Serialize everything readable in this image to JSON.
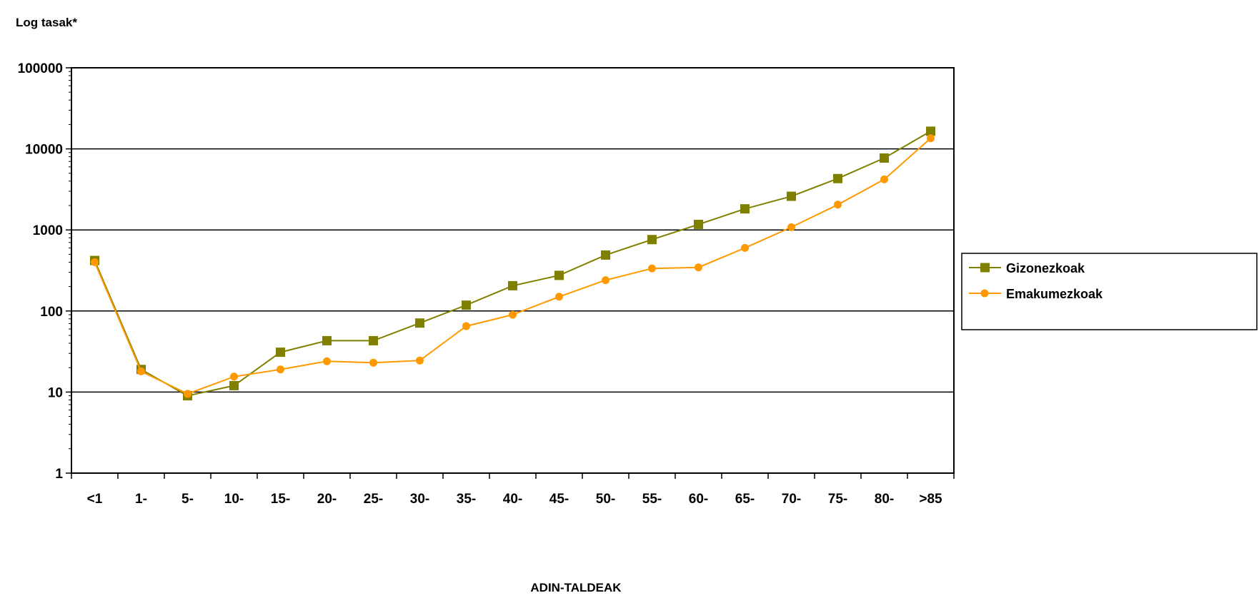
{
  "chart_data": {
    "type": "line",
    "ylabel": "Log tasak*",
    "xlabel": "ADIN-TALDEAK",
    "yscale": "log",
    "ylim": [
      1,
      100000
    ],
    "yticks": [
      "1",
      "10",
      "100",
      "1000",
      "10000",
      "100000"
    ],
    "grid": "horizontal major gridlines",
    "legend_position": "right",
    "categories": [
      "<1",
      "1-",
      "5-",
      "10-",
      "15-",
      "20-",
      "25-",
      "30-",
      "35-",
      "40-",
      "45-",
      "50-",
      "55-",
      "60-",
      "65-",
      "70-",
      "75-",
      "80-",
      ">85"
    ],
    "series": [
      {
        "name": "Gizonezkoak",
        "color": "#808000",
        "marker": "square",
        "values": [
          420,
          19,
          9,
          12,
          31,
          43,
          43,
          71,
          118,
          205,
          275,
          490,
          760,
          1170,
          1820,
          2600,
          4300,
          7700,
          16500
        ]
      },
      {
        "name": "Emakumezkoak",
        "color": "#FF9900",
        "marker": "circle",
        "values": [
          400,
          18,
          9.5,
          15.5,
          19,
          24,
          23,
          24.5,
          65,
          90,
          150,
          240,
          335,
          345,
          600,
          1080,
          2050,
          4200,
          13500
        ]
      }
    ]
  }
}
